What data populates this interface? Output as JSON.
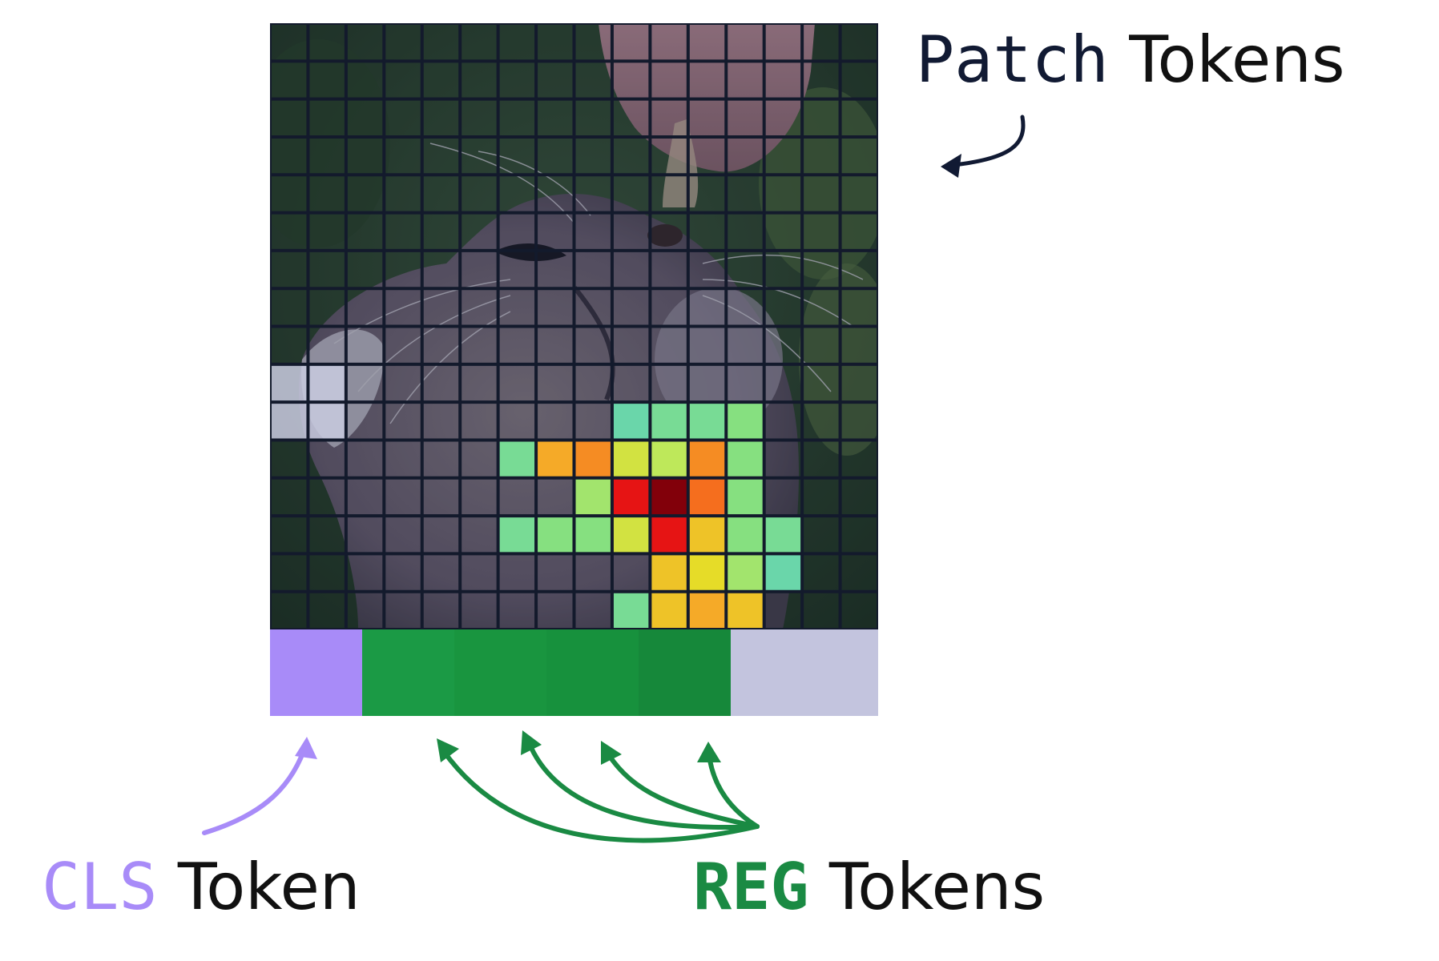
{
  "labels": {
    "patch": {
      "highlight": "Patch",
      "rest": " Tokens"
    },
    "cls": {
      "highlight": "CLS",
      "rest": " Token"
    },
    "reg": {
      "highlight": "REG",
      "rest": " Tokens"
    }
  },
  "colors": {
    "grid_line": "#131a2c",
    "cls": "#a88bf8",
    "reg": [
      "#1b9a45",
      "#19953f",
      "#17913d",
      "#16883a"
    ],
    "unused": "#c3c4de",
    "patch_text": "#111a33",
    "text": "#111111"
  },
  "grid": {
    "cols": 16,
    "rows": 16,
    "description_image": "cat looking up at fingers",
    "heatmap": [
      {
        "r": 10,
        "c": 9,
        "v": 0.3
      },
      {
        "r": 10,
        "c": 10,
        "v": 0.35
      },
      {
        "r": 10,
        "c": 11,
        "v": 0.35
      },
      {
        "r": 10,
        "c": 12,
        "v": 0.4
      },
      {
        "r": 11,
        "c": 6,
        "v": 0.35
      },
      {
        "r": 11,
        "c": 7,
        "v": 0.7
      },
      {
        "r": 11,
        "c": 8,
        "v": 0.75
      },
      {
        "r": 11,
        "c": 9,
        "v": 0.55
      },
      {
        "r": 11,
        "c": 10,
        "v": 0.5
      },
      {
        "r": 11,
        "c": 11,
        "v": 0.75
      },
      {
        "r": 11,
        "c": 12,
        "v": 0.4
      },
      {
        "r": 12,
        "c": 8,
        "v": 0.45
      },
      {
        "r": 12,
        "c": 9,
        "v": 0.9
      },
      {
        "r": 12,
        "c": 10,
        "v": 1.0
      },
      {
        "r": 12,
        "c": 11,
        "v": 0.8
      },
      {
        "r": 12,
        "c": 12,
        "v": 0.4
      },
      {
        "r": 13,
        "c": 6,
        "v": 0.35
      },
      {
        "r": 13,
        "c": 7,
        "v": 0.4
      },
      {
        "r": 13,
        "c": 8,
        "v": 0.4
      },
      {
        "r": 13,
        "c": 9,
        "v": 0.55
      },
      {
        "r": 13,
        "c": 10,
        "v": 0.9
      },
      {
        "r": 13,
        "c": 11,
        "v": 0.65
      },
      {
        "r": 13,
        "c": 12,
        "v": 0.4
      },
      {
        "r": 13,
        "c": 13,
        "v": 0.35
      },
      {
        "r": 14,
        "c": 10,
        "v": 0.65
      },
      {
        "r": 14,
        "c": 11,
        "v": 0.6
      },
      {
        "r": 14,
        "c": 12,
        "v": 0.45
      },
      {
        "r": 14,
        "c": 13,
        "v": 0.3
      },
      {
        "r": 15,
        "c": 9,
        "v": 0.35
      },
      {
        "r": 15,
        "c": 10,
        "v": 0.65
      },
      {
        "r": 15,
        "c": 11,
        "v": 0.7
      },
      {
        "r": 15,
        "c": 12,
        "v": 0.65
      }
    ],
    "bright_cells": [
      {
        "r": 9,
        "c": 0
      },
      {
        "r": 9,
        "c": 1
      },
      {
        "r": 10,
        "c": 0
      },
      {
        "r": 10,
        "c": 1
      }
    ]
  },
  "tokens": [
    {
      "kind": "cls",
      "units": 1
    },
    {
      "kind": "reg",
      "units": 1
    },
    {
      "kind": "reg",
      "units": 1
    },
    {
      "kind": "reg",
      "units": 1
    },
    {
      "kind": "reg",
      "units": 1
    },
    {
      "kind": "unused",
      "units": 1.6
    }
  ]
}
